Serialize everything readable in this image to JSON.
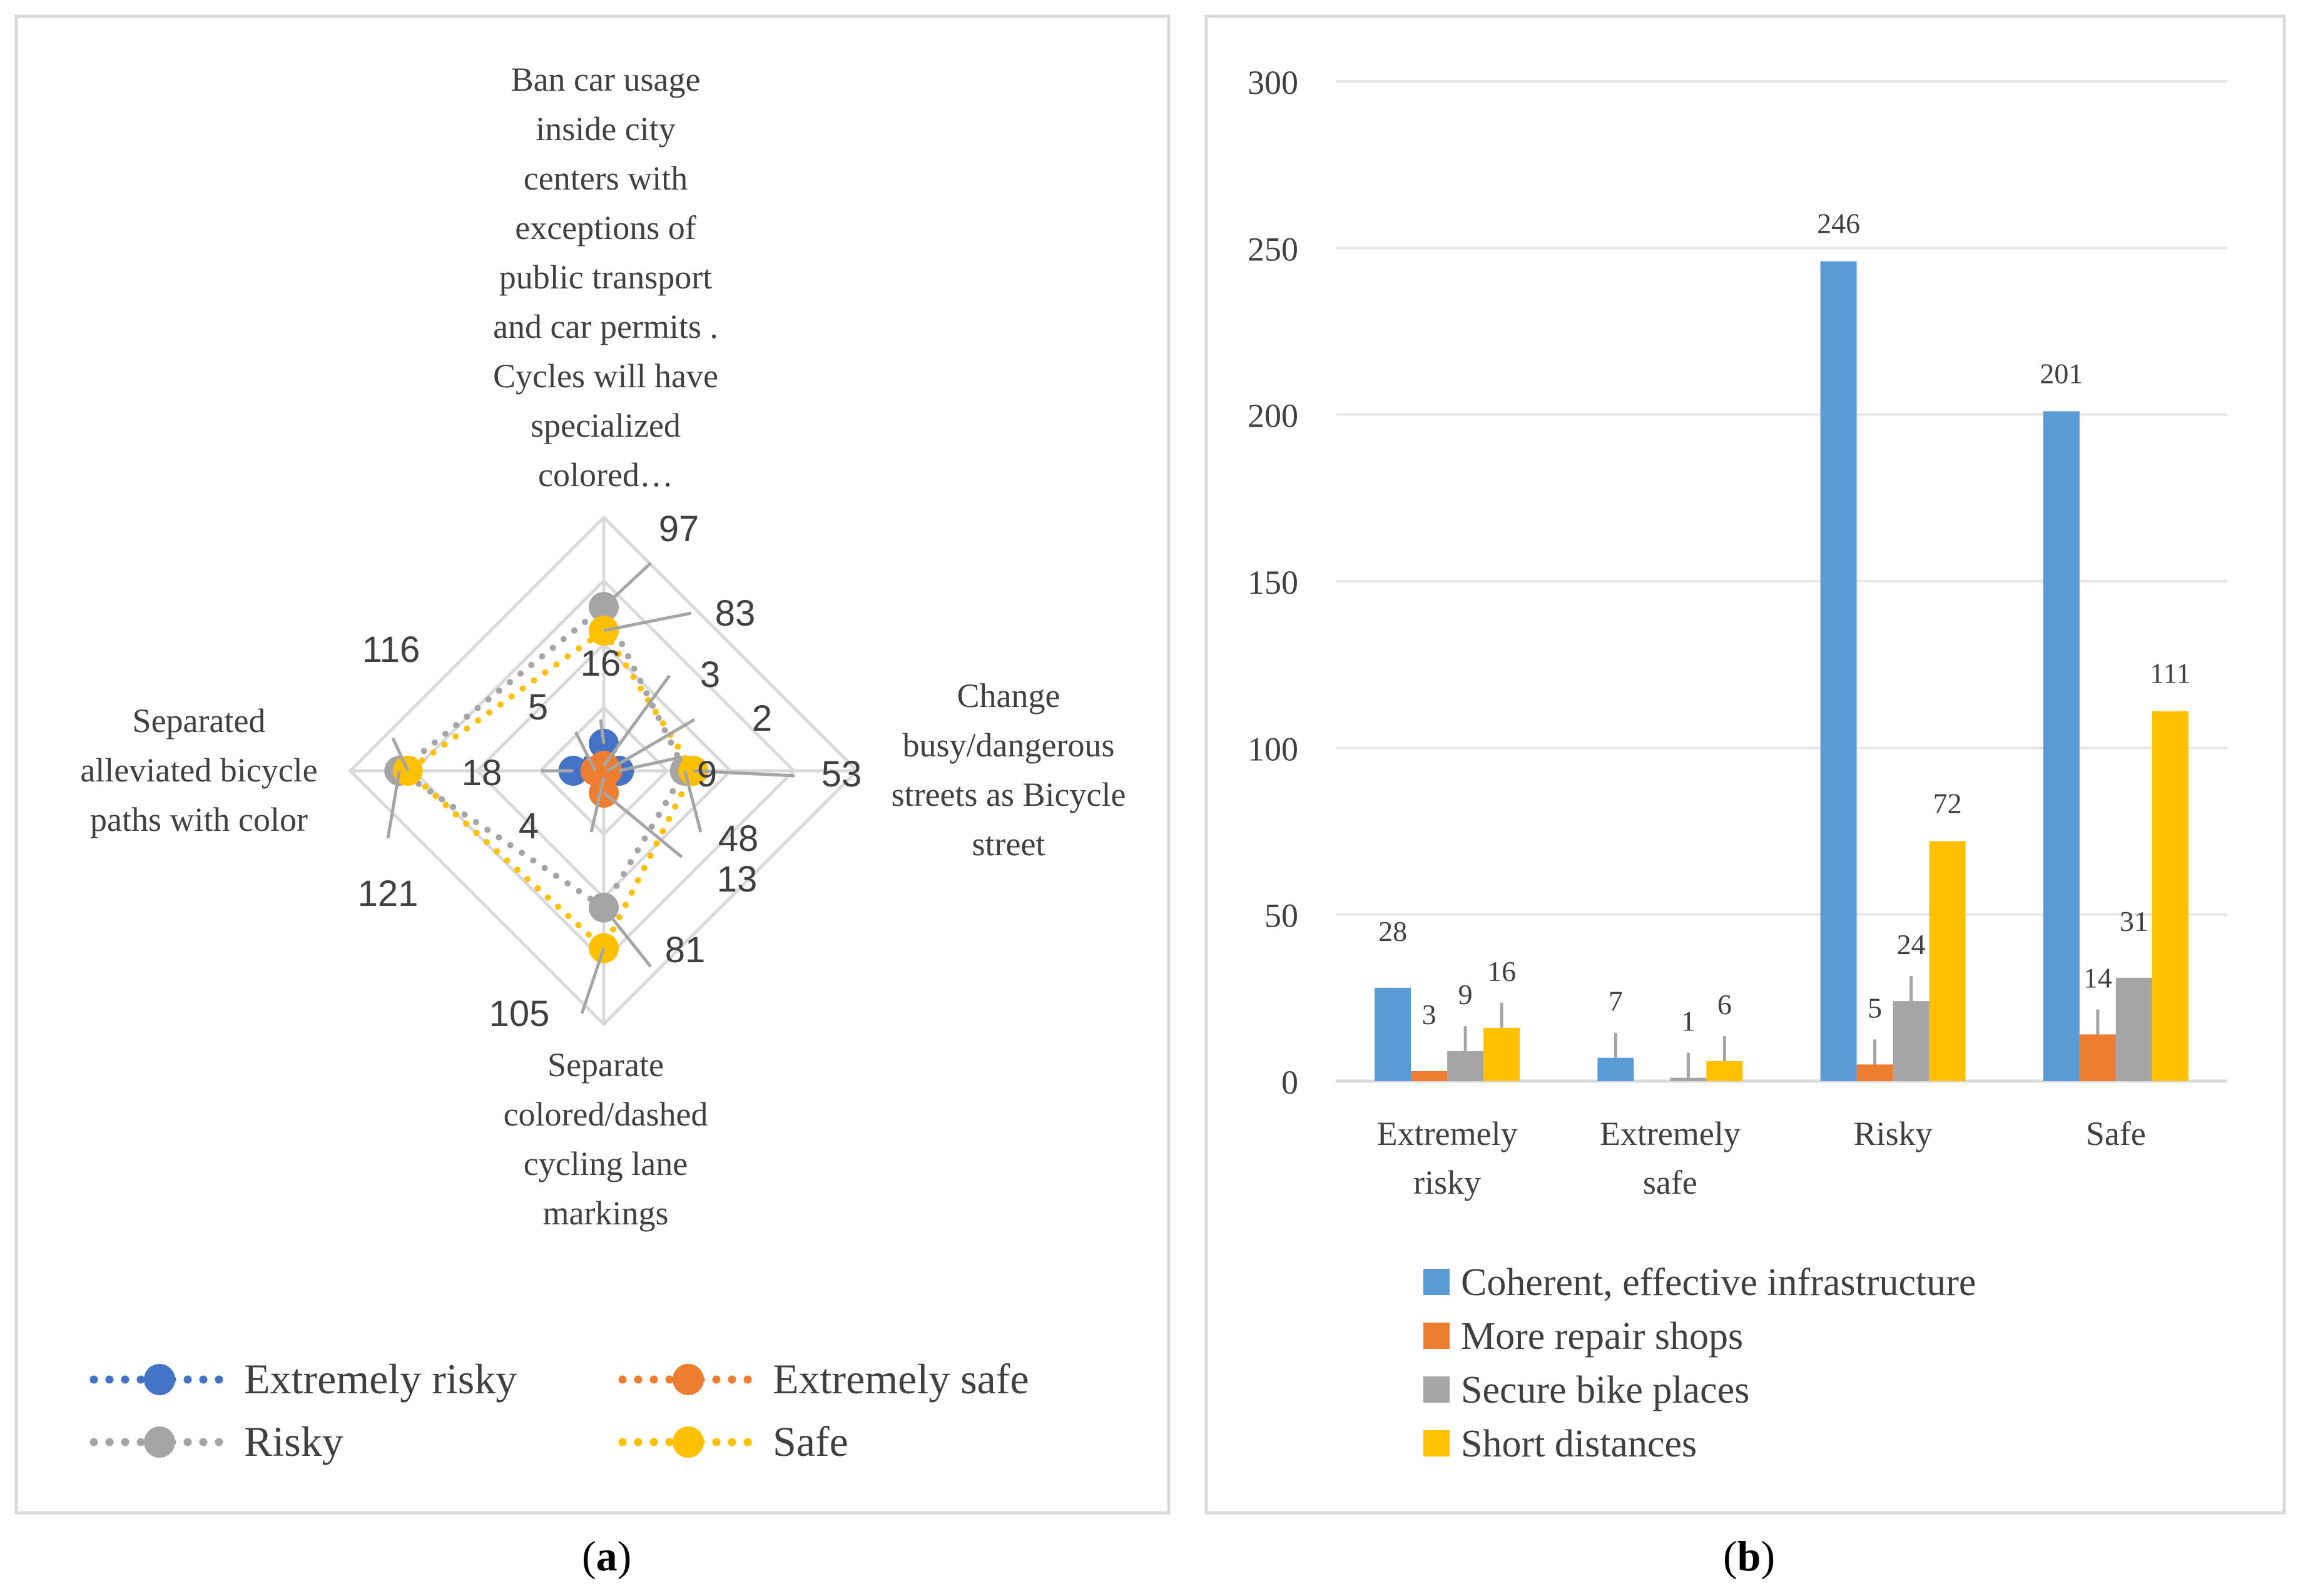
{
  "captions": {
    "a": "a",
    "b": "b"
  },
  "colors": {
    "blue": "#5b9bd5",
    "orange": "#ed7d31",
    "gray": "#a5a5a5",
    "yellow": "#ffc000",
    "darkblue": "#4472c4"
  },
  "chart_data": [
    {
      "type": "radar",
      "panel": "a",
      "axes": [
        "Ban car usage inside city centers with exceptions of public transport and car permits . Cycles will have specialized colored…",
        "Change busy/dangerous streets as Bicycle street",
        "Separate colored/dashed cycling lane markings",
        "Separated alleviated bicycle paths with color"
      ],
      "axis_label_lines": [
        [
          "Ban car usage",
          "inside city",
          "centers with",
          "exceptions of",
          "public transport",
          "and car permits .",
          "Cycles will have",
          "specialized",
          "colored…"
        ],
        [
          "Change",
          "busy/dangerous",
          "streets as Bicycle",
          "street"
        ],
        [
          "Separate",
          "colored/dashed",
          "cycling lane",
          "markings"
        ],
        [
          "Separated",
          "alleviated bicycle",
          "paths with color"
        ]
      ],
      "rmax": 150,
      "series": [
        {
          "name": "Extremely risky",
          "values": [
            16,
            9,
            4,
            18
          ]
        },
        {
          "name": "Extremely safe",
          "values": [
            3,
            2,
            13,
            5
          ]
        },
        {
          "name": "Risky",
          "values": [
            97,
            48,
            81,
            121
          ]
        },
        {
          "name": "Safe",
          "values": [
            83,
            53,
            105,
            116
          ]
        }
      ],
      "legend": [
        "Extremely risky",
        "Extremely safe",
        "Risky",
        "Safe"
      ]
    },
    {
      "type": "bar",
      "panel": "b",
      "categories": [
        [
          "Extremely",
          "risky"
        ],
        [
          "Extremely",
          "safe"
        ],
        [
          "Risky"
        ],
        [
          "Safe"
        ]
      ],
      "ylim": [
        0,
        300
      ],
      "yticks": [
        "0",
        "50",
        "100",
        "150",
        "200",
        "250",
        "300"
      ],
      "series": [
        {
          "name": "Coherent, effective infrastructure",
          "values": [
            28,
            7,
            246,
            201
          ]
        },
        {
          "name": "More repair shops",
          "values": [
            3,
            0,
            5,
            14
          ]
        },
        {
          "name": "Secure bike places",
          "values": [
            9,
            1,
            24,
            31
          ]
        },
        {
          "name": "Short distances",
          "values": [
            16,
            6,
            72,
            111
          ]
        }
      ],
      "data_labels": [
        [
          "28",
          "3",
          "9",
          "16"
        ],
        [
          "7",
          "",
          "1",
          "6"
        ],
        [
          "246",
          "5",
          "24",
          "72"
        ],
        [
          "201",
          "14",
          "31",
          "111"
        ]
      ],
      "legend": [
        "Coherent, effective infrastructure",
        "More repair shops",
        "Secure bike places",
        "Short distances"
      ]
    }
  ]
}
